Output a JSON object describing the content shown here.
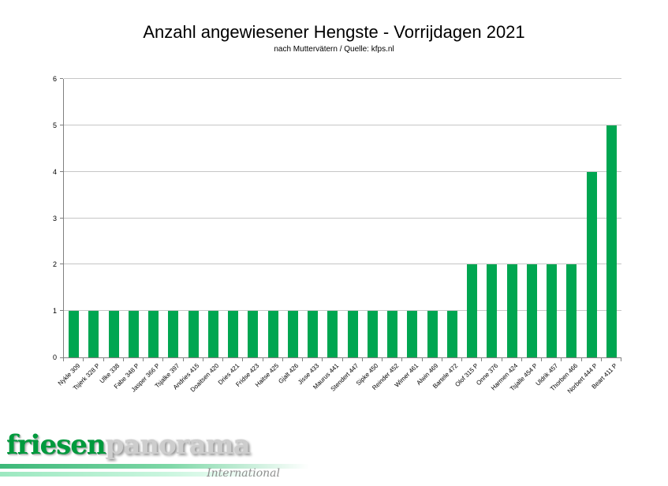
{
  "title": "Anzahl angewiesener Hengste - Vorrijdagen 2021",
  "subtitle": "nach Muttervätern / Quelle: kfps.nl",
  "chart_data": {
    "type": "bar",
    "title": "Anzahl angewiesener Hengste - Vorrijdagen 2021",
    "subtitle": "nach Muttervätern / Quelle: kfps.nl",
    "categories": [
      "Nykle 309",
      "Tsjerk 328 P",
      "Ulke 338",
      "Fabe 348 P",
      "Jasper 366 P",
      "Tsjalke 397",
      "Andries 415",
      "Doaitsen 420",
      "Dries 421",
      "Fridse 423",
      "Haitse 425",
      "Gjalt 426",
      "Jisse 433",
      "Maurus 441",
      "Stendert 447",
      "Sipke 450",
      "Reinder 452",
      "Wimer 461",
      "Alwin 469",
      "Bartele 472",
      "Olof 315 P",
      "Onne 376",
      "Harmen 424",
      "Tsjalle 454 P",
      "Uldrik 457",
      "Thorben 466",
      "Norbert 444 P",
      "Beart 411 P"
    ],
    "values": [
      1,
      1,
      1,
      1,
      1,
      1,
      1,
      1,
      1,
      1,
      1,
      1,
      1,
      1,
      1,
      1,
      1,
      1,
      1,
      1,
      2,
      2,
      2,
      2,
      2,
      2,
      4,
      5
    ],
    "xlabel": "",
    "ylabel": "",
    "ylim": [
      0,
      6
    ],
    "yticks": [
      0,
      1,
      2,
      3,
      4,
      5,
      6
    ],
    "grid": true,
    "legend": "none",
    "bar_color": "#00a651",
    "gridline_color": "#c6c6c6",
    "axis_color": "#808080"
  },
  "logo": {
    "word1": "friesen",
    "word2": "panorama",
    "tagline": "International",
    "green": "#009a3d",
    "silver": "#cdcdcd"
  }
}
